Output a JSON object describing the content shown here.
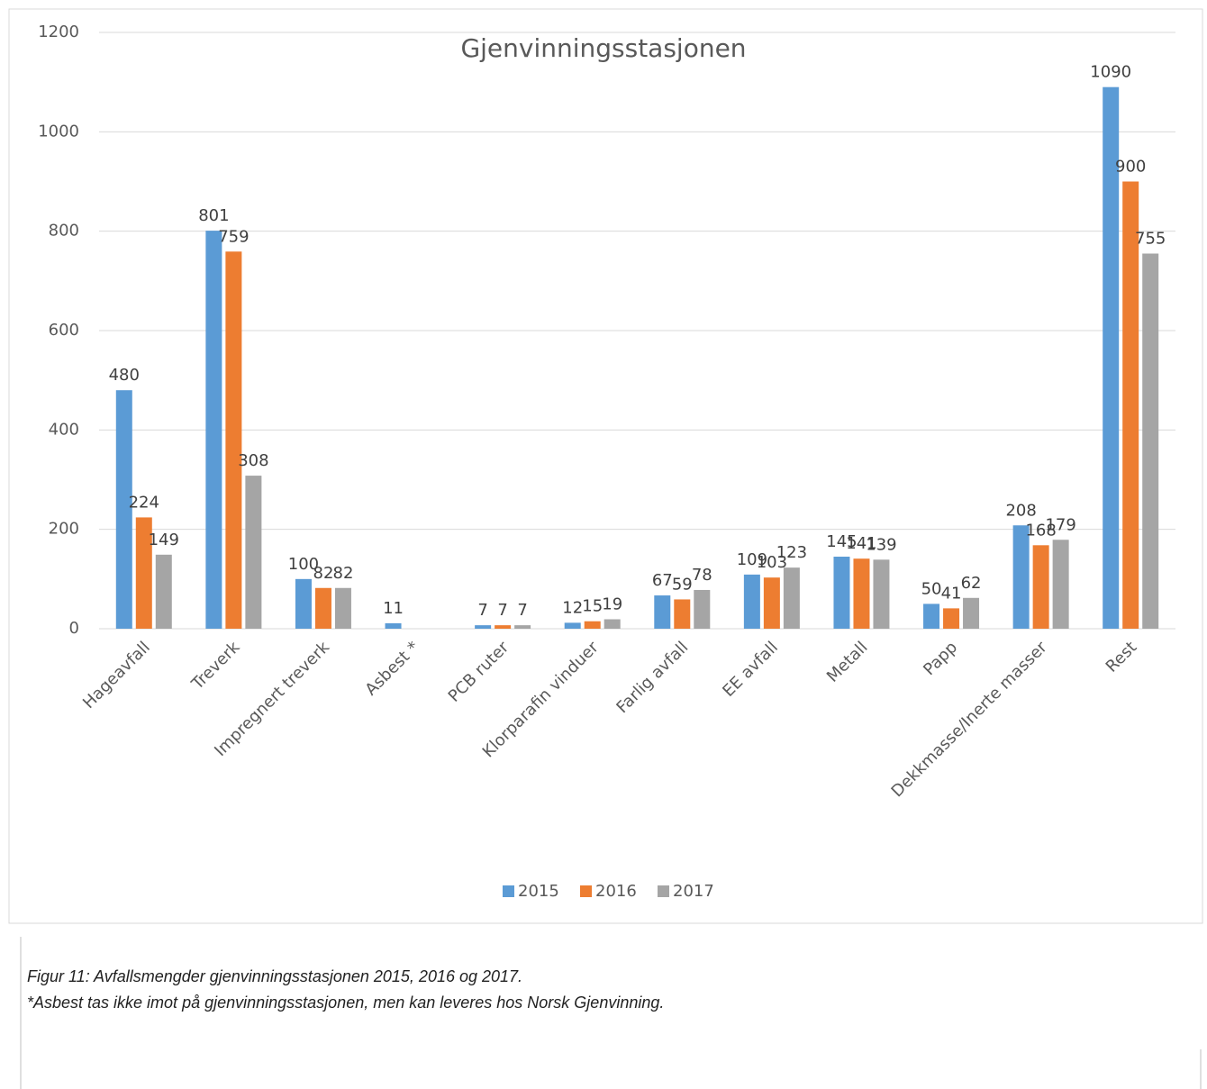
{
  "chart_data": {
    "type": "bar",
    "title": "Gjenvinningsstasjonen",
    "categories": [
      "Hageavfall",
      "Treverk",
      "Impregnert treverk",
      "Asbest *",
      "PCB ruter",
      "Klorparafin vinduer",
      "Farlig avfall",
      "EE avfall",
      "Metall",
      "Papp",
      "Dekkmasse/Inerte masser",
      "Rest"
    ],
    "series": [
      {
        "name": "2015",
        "color": "#5b9bd5",
        "values": [
          480,
          801,
          100,
          11,
          7,
          12,
          67,
          109,
          145,
          50,
          208,
          1090
        ]
      },
      {
        "name": "2016",
        "color": "#ed7d31",
        "values": [
          224,
          759,
          82,
          null,
          7,
          15,
          59,
          103,
          141,
          41,
          168,
          900
        ]
      },
      {
        "name": "2017",
        "color": "#a5a5a5",
        "values": [
          149,
          308,
          82,
          null,
          7,
          19,
          78,
          123,
          139,
          62,
          179,
          755
        ]
      }
    ],
    "ylim": [
      0,
      1200
    ],
    "yticks": [
      0,
      200,
      400,
      600,
      800,
      1000,
      1200
    ],
    "grid": true,
    "legend": "bottom"
  },
  "figure_caption": [
    "Figur 11: Avfallsmengder gjenvinningsstasjonen 2015, 2016 og 2017.",
    "*Asbest tas ikke imot på gjenvinningsstasjonen, men kan leveres hos Norsk Gjenvinning."
  ]
}
